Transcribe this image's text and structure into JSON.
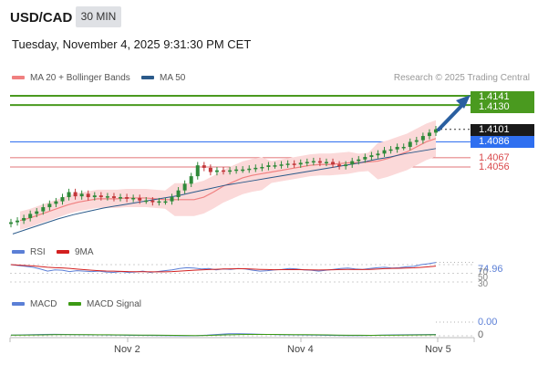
{
  "header": {
    "symbol": "USD/CAD",
    "timeframe": "30 MIN",
    "datetime": "Tuesday, November 4, 2025 9:31:30 PM CET"
  },
  "legend": {
    "ma20_bb": "MA 20 + Bollinger Bands",
    "ma50": "MA 50",
    "credit": "Research © 2025 Trading Central",
    "rsi": "RSI",
    "rsi_ma": "9MA",
    "macd": "MACD",
    "macd_signal": "MACD Signal"
  },
  "colors": {
    "green": "#4a9a1f",
    "blue": "#2f6ff0",
    "red": "#d9484b",
    "dark": "#1a1a1a",
    "candle_up": "#2f8a3a",
    "candle_down": "#c2373a",
    "ma20": "#f08080",
    "ma50": "#2b5a8a",
    "bb_fill": "#fbd9d9",
    "rsi_line": "#5b7fd6",
    "rsi_ma": "#d32020",
    "macd_line": "#5b7fd6",
    "signal_line": "#3c9a14",
    "arrow": "#2a5fa0"
  },
  "price_labels": [
    {
      "text": "1.4141",
      "kind": "green-box"
    },
    {
      "text": "1.4130",
      "kind": "green-box"
    },
    {
      "text": "1.4101",
      "kind": "dark-box"
    },
    {
      "text": "1.4086",
      "kind": "blue-box"
    },
    {
      "text": "1.4067",
      "kind": "red-text"
    },
    {
      "text": "1.4056",
      "kind": "red-text"
    }
  ],
  "indicator_labels": {
    "rsi_value": "74.96",
    "rsi_70": "70",
    "rsi_50": "50",
    "rsi_30": "30",
    "macd_value": "0.00",
    "macd_zero": "0"
  },
  "x_axis": [
    "Nov 2",
    "Nov 4",
    "Nov 5"
  ],
  "chart_data": {
    "type": "candlestick",
    "title": "USD/CAD",
    "timeframe": "30 MIN",
    "levels": {
      "resistance": [
        1.4141,
        1.413
      ],
      "last_price": 1.4101,
      "pivot": 1.4086,
      "support": [
        1.4067,
        1.4056
      ]
    },
    "close_series": [
      1.399,
      1.3992,
      1.3995,
      1.4,
      1.4003,
      1.4008,
      1.4012,
      1.4015,
      1.402,
      1.4026,
      1.4021,
      1.4024,
      1.402,
      1.4022,
      1.402,
      1.4021,
      1.4019,
      1.402,
      1.4018,
      1.4019,
      1.4016,
      1.4016,
      1.4014,
      1.4015,
      1.4015,
      1.402,
      1.4028,
      1.4036,
      1.4045,
      1.4058,
      1.4055,
      1.405,
      1.4052,
      1.4051,
      1.4052,
      1.4053,
      1.4053,
      1.4054,
      1.4055,
      1.4056,
      1.4058,
      1.4058,
      1.4059,
      1.406,
      1.4059,
      1.4061,
      1.4062,
      1.4063,
      1.4061,
      1.4062,
      1.4059,
      1.4057,
      1.4059,
      1.4063,
      1.4065,
      1.4068,
      1.407,
      1.4072,
      1.4076,
      1.4077,
      1.408,
      1.408,
      1.4086,
      1.4088,
      1.4093,
      1.4097,
      1.4101
    ],
    "ma20_series": [
      1.3992,
      1.3995,
      1.3999,
      1.4003,
      1.4007,
      1.4011,
      1.4014,
      1.4016,
      1.4018,
      1.4018,
      1.4018,
      1.4019,
      1.4019,
      1.4019,
      1.4018,
      1.4017,
      1.4017,
      1.4017,
      1.4017,
      1.402,
      1.4026,
      1.4033,
      1.4038,
      1.4043,
      1.4046,
      1.4048,
      1.405,
      1.4052,
      1.4054,
      1.4056,
      1.4058,
      1.4059,
      1.4059,
      1.406,
      1.4061,
      1.4061,
      1.4062,
      1.4063,
      1.4066,
      1.407,
      1.4074,
      1.408,
      1.4086,
      1.409
    ],
    "ma50_series": [
      1.3976,
      1.3982,
      1.3988,
      1.3994,
      1.3999,
      1.4003,
      1.4007,
      1.401,
      1.4013,
      1.4016,
      1.4019,
      1.4022,
      1.4026,
      1.403,
      1.4034,
      1.4037,
      1.404,
      1.4043,
      1.4046,
      1.4049,
      1.4052,
      1.4055,
      1.4058,
      1.4061,
      1.4065,
      1.4068,
      1.4072,
      1.4075,
      1.4078
    ],
    "rsi": {
      "last": 74.96,
      "levels": [
        70,
        50,
        30
      ]
    },
    "macd": {
      "last": 0.0,
      "zero": 0
    },
    "x_ticks": [
      "Nov 2",
      "Nov 4",
      "Nov 5"
    ]
  }
}
